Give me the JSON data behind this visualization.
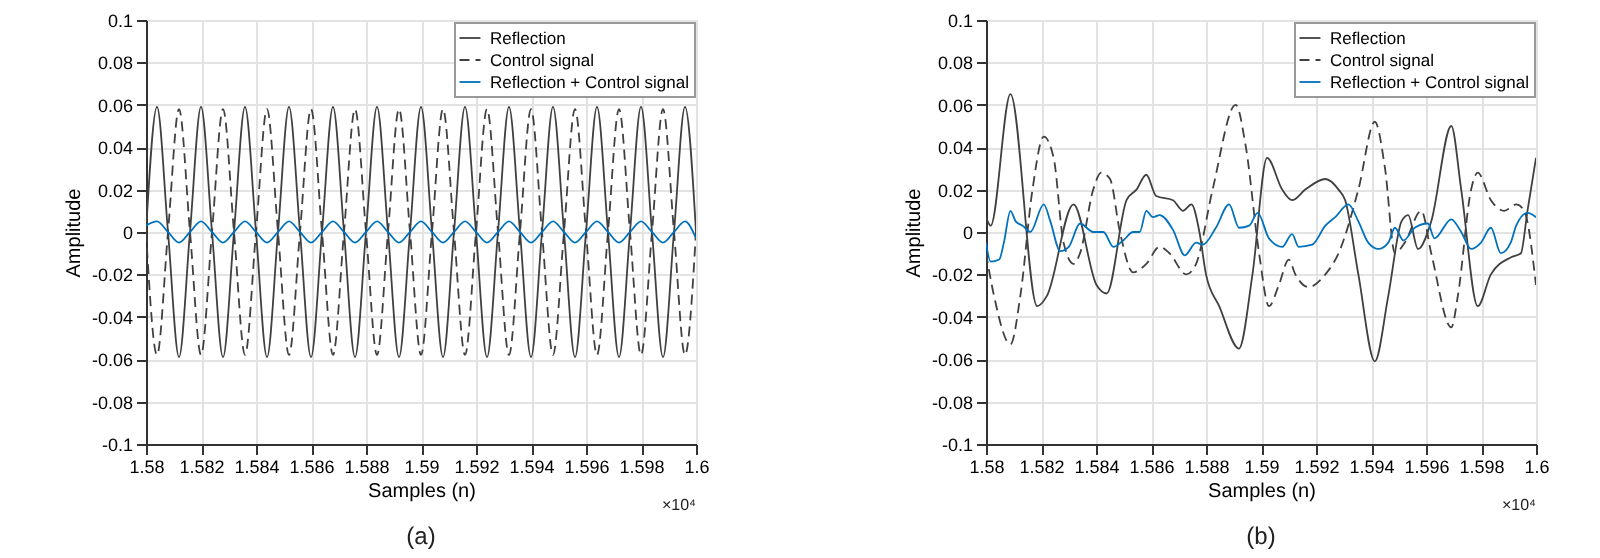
{
  "chart_data": [
    {
      "type": "line",
      "xlabel": "Samples (n)",
      "ylabel": "Amplitude",
      "annotations": [
        "×10⁴",
        "(a)"
      ],
      "x": [
        1.58,
        1.5804,
        1.5808,
        1.5812,
        1.5816,
        1.582,
        1.5824,
        1.5828,
        1.5832,
        1.5836,
        1.584,
        1.5844,
        1.5848,
        1.5852,
        1.5856,
        1.586,
        1.5864,
        1.5868,
        1.5872,
        1.5876,
        1.588,
        1.5884,
        1.5888,
        1.5892,
        1.5896,
        1.59,
        1.5904,
        1.5908,
        1.5912,
        1.5916,
        1.592,
        1.5924,
        1.5928,
        1.5932,
        1.5936,
        1.594,
        1.5944,
        1.5948,
        1.5952,
        1.5956,
        1.596,
        1.5964,
        1.5968,
        1.5972,
        1.5976,
        1.598,
        1.5984,
        1.5988,
        1.5992,
        1.5996,
        1.6
      ],
      "xlim": [
        1.58,
        1.6
      ],
      "xticks": [
        1.58,
        1.582,
        1.584,
        1.586,
        1.588,
        1.59,
        1.592,
        1.594,
        1.596,
        1.598,
        1.6
      ],
      "ylim": [
        -0.1,
        0.1
      ],
      "yticks": [
        -0.1,
        -0.08,
        -0.06,
        -0.04,
        -0.02,
        0,
        0.02,
        0.04,
        0.06,
        0.08,
        0.1
      ],
      "grid": true,
      "legend": "top right",
      "series": [
        {
          "name": "Reflection",
          "color": "#404040",
          "line_style": "solid",
          "values": [
            0,
            0.059,
            0,
            -0.059,
            0,
            0.059,
            0,
            -0.059,
            0,
            0.059,
            0,
            -0.059,
            0,
            0.059,
            0,
            -0.059,
            0,
            0.059,
            0,
            -0.059,
            0,
            0.059,
            0,
            -0.059,
            0,
            0.059,
            0,
            -0.059,
            0,
            0.059,
            0,
            -0.059,
            0,
            0.059,
            0,
            -0.059,
            0,
            0.059,
            0,
            -0.059,
            0,
            0.059,
            0,
            -0.059,
            0,
            0.059,
            0,
            -0.059,
            0,
            0.059,
            0
          ]
        },
        {
          "name": "Control signal",
          "color": "#404040",
          "line_style": "dashed",
          "values": [
            0,
            -0.058,
            0,
            0.058,
            0,
            -0.058,
            0,
            0.058,
            0,
            -0.058,
            0,
            0.058,
            0,
            -0.058,
            0,
            0.058,
            0,
            -0.058,
            0,
            0.058,
            0,
            -0.058,
            0,
            0.058,
            0,
            -0.058,
            0,
            0.058,
            0,
            -0.058,
            0,
            0.058,
            0,
            -0.058,
            0,
            0.058,
            0,
            -0.058,
            0,
            0.058,
            0,
            -0.058,
            0,
            0.058,
            0,
            -0.058,
            0,
            0.058,
            0,
            -0.058,
            0
          ]
        },
        {
          "name": "Reflection + Control signal",
          "color": "#0072bd",
          "line_style": "solid",
          "values": [
            0.003,
            0.005,
            0,
            -0.005,
            0,
            0.005,
            0,
            -0.005,
            0,
            0.005,
            0,
            -0.005,
            0,
            0.005,
            0,
            -0.005,
            0,
            0.005,
            0,
            -0.005,
            0,
            0.005,
            0,
            -0.005,
            0,
            0.005,
            0,
            -0.005,
            0,
            0.005,
            0,
            -0.005,
            0,
            0.005,
            0,
            -0.005,
            0,
            0.005,
            0,
            -0.005,
            0,
            0.005,
            0,
            -0.005,
            0,
            0.005,
            0,
            -0.005,
            0,
            0.005,
            -0.003
          ]
        }
      ]
    },
    {
      "type": "line",
      "xlabel": "Samples (n)",
      "ylabel": "Amplitude",
      "annotations": [
        "×10⁴",
        "(b)"
      ],
      "xlim": [
        1.58,
        1.6
      ],
      "xticks": [
        1.58,
        1.582,
        1.584,
        1.586,
        1.588,
        1.59,
        1.592,
        1.594,
        1.596,
        1.598,
        1.6
      ],
      "ylim": [
        -0.1,
        0.1
      ],
      "yticks": [
        -0.1,
        -0.08,
        -0.06,
        -0.04,
        -0.02,
        0,
        0.02,
        0.04,
        0.06,
        0.08,
        0.1
      ],
      "grid": true,
      "legend": "top right",
      "series": [
        {
          "name": "Reflection",
          "color": "#404040",
          "line_style": "solid",
          "x": [
            1.58,
            1.58017,
            1.58089,
            1.58186,
            1.58222,
            1.58318,
            1.58402,
            1.58439,
            1.58511,
            1.58547,
            1.58583,
            1.58619,
            1.5868,
            1.58716,
            1.58747,
            1.58776,
            1.588,
            1.58848,
            1.5892,
            1.58969,
            1.59022,
            1.59077,
            1.59113,
            1.59161,
            1.59234,
            1.59282,
            1.59306,
            1.59354,
            1.59414,
            1.59463,
            1.59511,
            1.59535,
            1.59571,
            1.59619,
            1.59692,
            1.59728,
            1.59788,
            1.59836,
            1.59908,
            1.59945,
            1.59969,
            1.6
          ],
          "values": [
            0.007,
            0.003,
            0.065,
            -0.035,
            -0.03,
            0.013,
            -0.025,
            -0.029,
            0.015,
            0.02,
            0.027,
            0.017,
            0.015,
            0.01,
            0.013,
            0,
            -0.02,
            -0.035,
            -0.055,
            -0.02,
            0.035,
            0.02,
            0.015,
            0.02,
            0.025,
            0.02,
            0.015,
            -0.02,
            -0.061,
            -0.03,
            0.005,
            0.008,
            -0.008,
            0.005,
            0.05,
            0.02,
            -0.035,
            -0.02,
            -0.012,
            -0.01,
            0.01,
            0.035
          ]
        },
        {
          "name": "Control signal",
          "color": "#404040",
          "line_style": "dashed",
          "x": [
            1.58,
            1.58029,
            1.58089,
            1.58125,
            1.58169,
            1.5821,
            1.58246,
            1.58282,
            1.58318,
            1.58342,
            1.5839,
            1.58419,
            1.58451,
            1.58487,
            1.58535,
            1.58583,
            1.58631,
            1.58667,
            1.58728,
            1.58764,
            1.58824,
            1.58908,
            1.58945,
            1.58993,
            1.59029,
            1.59065,
            1.59101,
            1.59125,
            1.59173,
            1.59234,
            1.59282,
            1.59354,
            1.59414,
            1.59451,
            1.59487,
            1.59523,
            1.59583,
            1.59619,
            1.59692,
            1.59716,
            1.59764,
            1.59788,
            1.59836,
            1.59884,
            1.59928,
            1.59957,
            1.6
          ],
          "values": [
            -0.01,
            -0.03,
            -0.053,
            -0.03,
            0.02,
            0.045,
            0.035,
            -0.005,
            -0.015,
            -0.01,
            0.02,
            0.028,
            0.025,
            0,
            -0.019,
            -0.015,
            -0.007,
            -0.01,
            -0.02,
            -0.015,
            0.02,
            0.06,
            0.04,
            -0.01,
            -0.035,
            -0.025,
            -0.013,
            -0.02,
            -0.026,
            -0.02,
            -0.01,
            0.02,
            0.052,
            0.03,
            -0.01,
            -0.005,
            0.01,
            -0.01,
            -0.045,
            -0.03,
            0.02,
            0.028,
            0.015,
            0.01,
            0.013,
            0.01,
            -0.025
          ]
        },
        {
          "name": "Reflection + Control signal",
          "color": "#0072bd",
          "line_style": "solid",
          "x": [
            1.58,
            1.58017,
            1.58048,
            1.58065,
            1.58089,
            1.58108,
            1.58133,
            1.58161,
            1.5821,
            1.58234,
            1.5827,
            1.58301,
            1.58342,
            1.5839,
            1.58427,
            1.58463,
            1.58499,
            1.58535,
            1.58559,
            1.58583,
            1.58607,
            1.58631,
            1.5868,
            1.58723,
            1.58764,
            1.58788,
            1.58836,
            1.58884,
            1.5892,
            1.58957,
            1.58988,
            1.59029,
            1.59077,
            1.59113,
            1.59137,
            1.59186,
            1.59234,
            1.5927,
            1.59318,
            1.59354,
            1.5939,
            1.59427,
            1.59463,
            1.59487,
            1.59518,
            1.59559,
            1.59607,
            1.59631,
            1.59692,
            1.59728,
            1.59764,
            1.598,
            1.59836,
            1.59872,
            1.59908,
            1.59928,
            1.59969,
            1.6
          ],
          "values": [
            -0.005,
            -0.014,
            -0.013,
            -0.005,
            0.01,
            0.005,
            0.003,
            0,
            0.013,
            0.005,
            -0.009,
            -0.007,
            0.004,
            0,
            0,
            -0.007,
            -0.004,
            0,
            0,
            0.01,
            0.007,
            0.008,
            0.001,
            -0.011,
            -0.005,
            -0.006,
            0.002,
            0.013,
            0.002,
            0.003,
            0.009,
            -0.003,
            -0.007,
            -0.001,
            -0.007,
            -0.006,
            0.003,
            0.007,
            0.013,
            0.005,
            -0.005,
            -0.008,
            -0.005,
            0.002,
            -0.004,
            0.002,
            0.004,
            -0.003,
            0.006,
            0,
            -0.008,
            -0.005,
            0.002,
            -0.01,
            -0.005,
            0.003,
            0.009,
            0.007
          ]
        }
      ]
    }
  ]
}
